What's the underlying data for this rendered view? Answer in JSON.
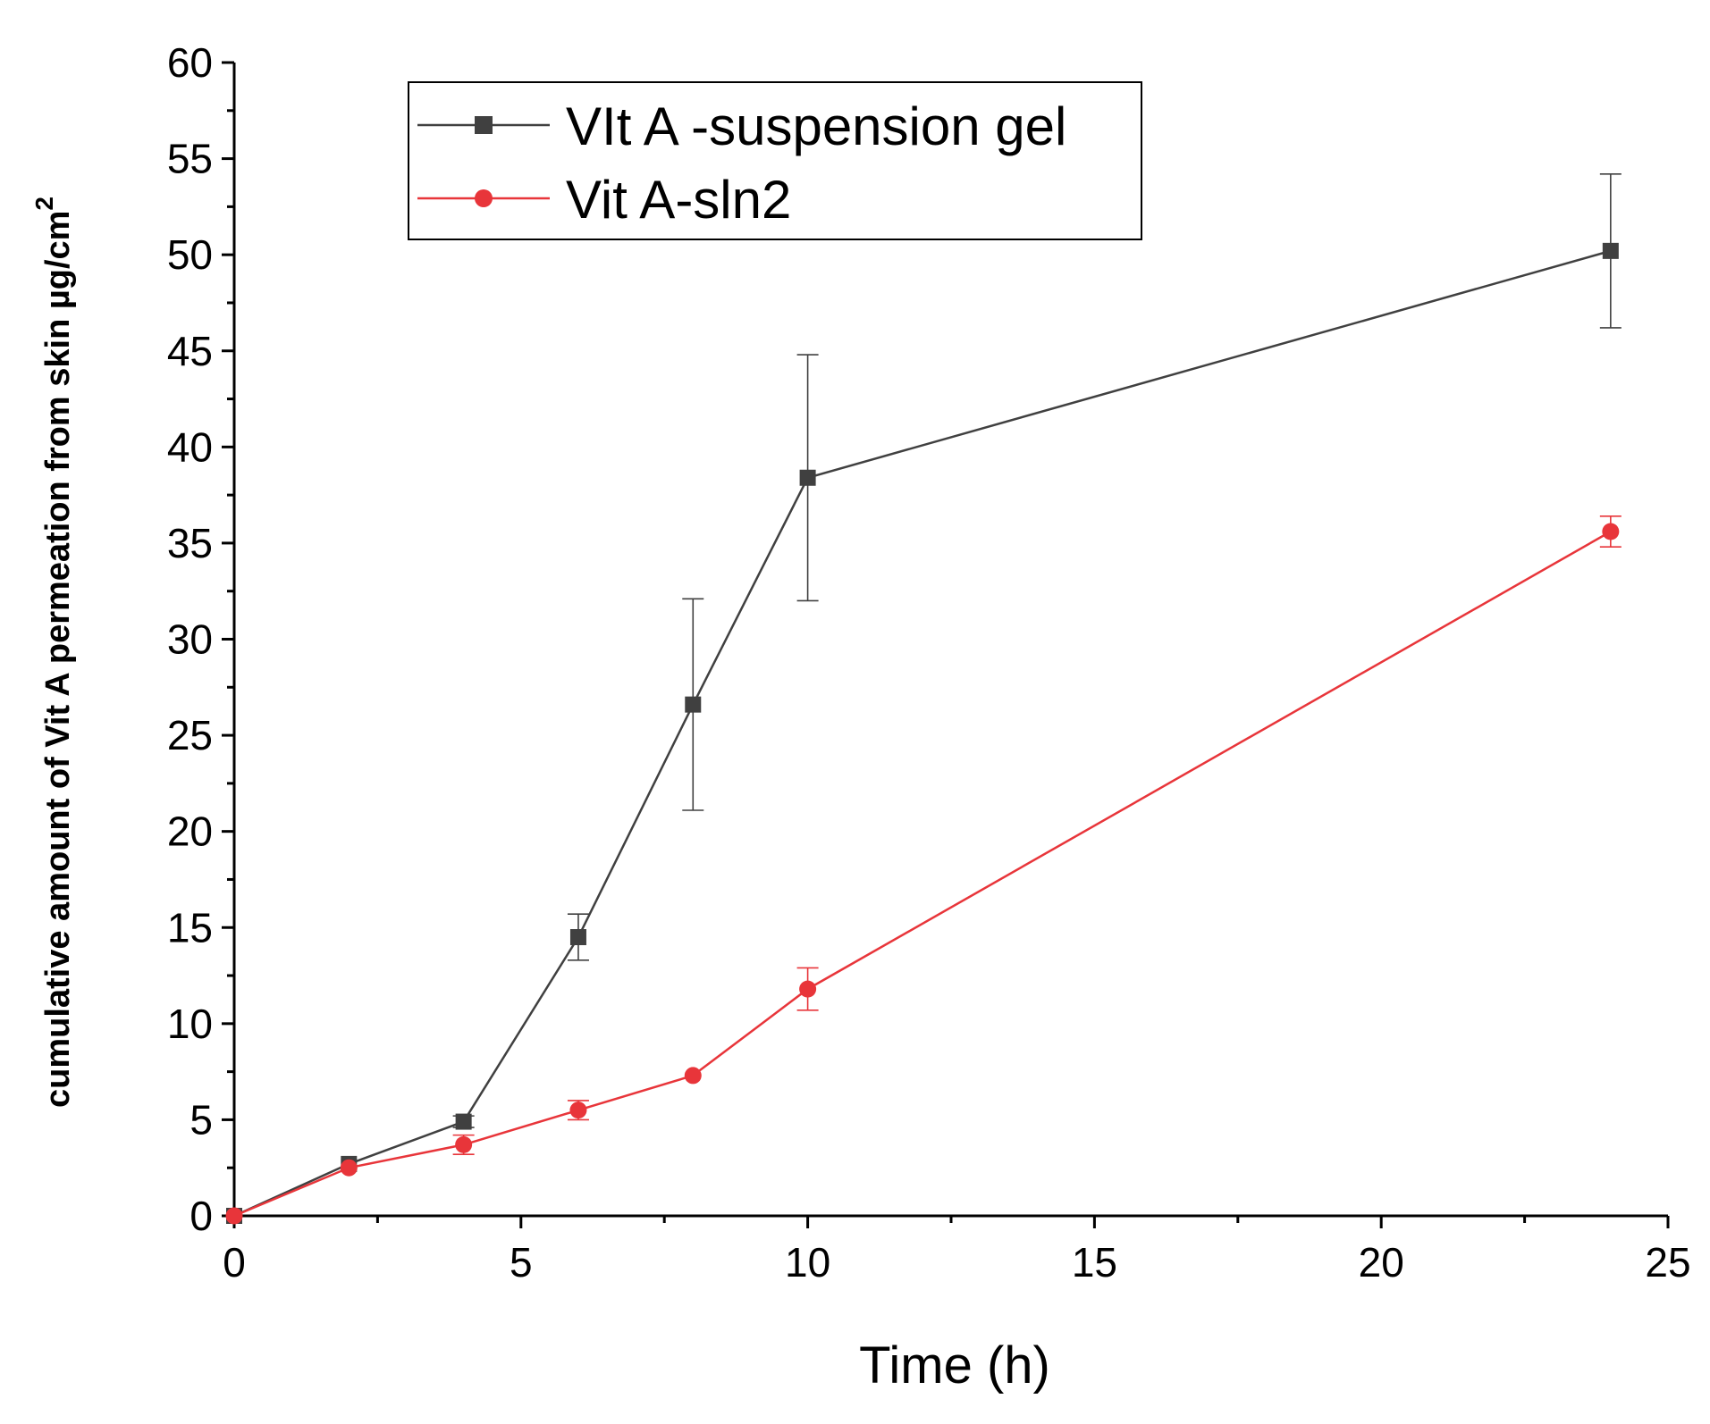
{
  "chart_data": {
    "type": "line",
    "title": "",
    "xlabel": "Time (h)",
    "ylabel": "cumulative amount of Vit A permeation from skin µg/cm",
    "ylabel_superscript": "2",
    "xlim": [
      0,
      25
    ],
    "ylim": [
      0,
      60
    ],
    "xticks": [
      0,
      5,
      10,
      15,
      20,
      25
    ],
    "yticks": [
      0,
      5,
      10,
      15,
      20,
      25,
      30,
      35,
      40,
      45,
      50,
      55,
      60
    ],
    "grid": false,
    "legend_position": "top-left",
    "series": [
      {
        "name": "VIt A -suspension gel",
        "color": "#404040",
        "marker": "square",
        "x": [
          0,
          2,
          4,
          6,
          8,
          10,
          24
        ],
        "y": [
          0,
          2.7,
          4.9,
          14.5,
          26.6,
          38.4,
          50.2
        ],
        "error": [
          0,
          0,
          0.3,
          1.2,
          5.5,
          6.4,
          4.0
        ]
      },
      {
        "name": "Vit A-sln2",
        "color": "#e8353a",
        "marker": "circle",
        "x": [
          0,
          2,
          4,
          6,
          8,
          10,
          24
        ],
        "y": [
          0,
          2.5,
          3.7,
          5.5,
          7.3,
          11.8,
          35.6
        ],
        "error": [
          0,
          0,
          0.5,
          0.5,
          0,
          1.1,
          0.8
        ]
      }
    ]
  }
}
